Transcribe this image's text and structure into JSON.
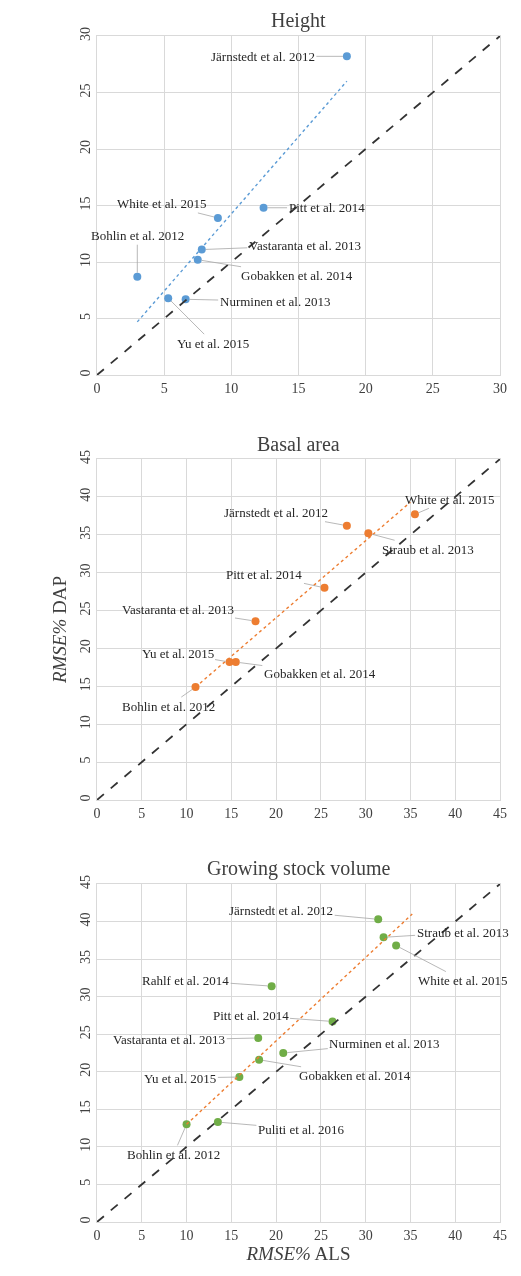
{
  "chart_data": [
    {
      "type": "scatter",
      "title": "Height",
      "xlim": [
        0,
        30
      ],
      "ylim": [
        0,
        30
      ],
      "xticks": [
        0,
        5,
        10,
        15,
        20,
        25,
        30
      ],
      "yticks": [
        0,
        5,
        10,
        15,
        20,
        25,
        30
      ],
      "grid": true,
      "marker": "circle",
      "series": [
        {
          "color": "#5b9bd5",
          "x": [
            18.6,
            12.4,
            9.0,
            7.8,
            7.5,
            3.0,
            6.6,
            5.3
          ],
          "values": [
            28.2,
            14.8,
            13.9,
            11.1,
            10.2,
            8.7,
            6.7,
            6.8
          ]
        },
        {
          "type": "line",
          "color": "#5b9bd5",
          "line_style": "dotted",
          "marker": "none",
          "x": [
            3.0,
            18.6
          ],
          "values": [
            4.7,
            26.0
          ]
        },
        {
          "type": "line",
          "color": "#333333",
          "line_style": "dashed",
          "marker": "none",
          "x": [
            0,
            30
          ],
          "values": [
            0,
            30
          ]
        }
      ],
      "annotations": [
        {
          "text": "Järnstedt et al. 2012",
          "x": 18.6,
          "y": 28.2
        },
        {
          "text": "Pitt et al. 2014",
          "x": 12.4,
          "y": 14.8
        },
        {
          "text": "White et al. 2015",
          "x": 9.0,
          "y": 13.9
        },
        {
          "text": "Vastaranta et al. 2013",
          "x": 7.8,
          "y": 11.1
        },
        {
          "text": "Gobakken et al. 2014",
          "x": 7.5,
          "y": 10.2
        },
        {
          "text": "Bohlin et al. 2012",
          "x": 3.0,
          "y": 8.7
        },
        {
          "text": "Nurminen et al. 2013",
          "x": 6.6,
          "y": 6.7
        },
        {
          "text": "Yu et al. 2015",
          "x": 5.3,
          "y": 6.8
        }
      ]
    },
    {
      "type": "scatter",
      "title": "Basal area",
      "ylabel": "RMSE% DAP",
      "xlim": [
        0,
        45
      ],
      "ylim": [
        0,
        45
      ],
      "xticks": [
        0,
        5,
        10,
        15,
        20,
        25,
        30,
        35,
        40,
        45
      ],
      "yticks": [
        0,
        5,
        10,
        15,
        20,
        25,
        30,
        35,
        40,
        45
      ],
      "grid": true,
      "marker": "circle",
      "series": [
        {
          "color": "#ed7d31",
          "x": [
            27.9,
            30.3,
            35.5,
            25.4,
            17.7,
            14.8,
            15.5,
            11.0
          ],
          "values": [
            36.2,
            35.2,
            37.7,
            28.0,
            23.6,
            18.2,
            18.2,
            14.9
          ]
        },
        {
          "type": "line",
          "color": "#ed7d31",
          "line_style": "dotted",
          "marker": "none",
          "x": [
            11.0,
            35.0
          ],
          "values": [
            14.9,
            39.3
          ]
        },
        {
          "type": "line",
          "color": "#333333",
          "line_style": "dashed",
          "marker": "none",
          "x": [
            0,
            45
          ],
          "values": [
            0,
            45
          ]
        }
      ],
      "annotations": [
        {
          "text": "Järnstedt et al. 2012",
          "x": 27.9,
          "y": 36.2
        },
        {
          "text": "Straub et al. 2013",
          "x": 30.3,
          "y": 35.2
        },
        {
          "text": "White et al. 2015",
          "x": 35.5,
          "y": 37.7
        },
        {
          "text": "Pitt et al. 2014",
          "x": 25.4,
          "y": 28.0
        },
        {
          "text": "Vastaranta et al. 2013",
          "x": 17.7,
          "y": 23.6
        },
        {
          "text": "Yu et al. 2015",
          "x": 14.8,
          "y": 18.2
        },
        {
          "text": "Gobakken et al. 2014",
          "x": 15.5,
          "y": 18.2
        },
        {
          "text": "Bohlin et al. 2012",
          "x": 11.0,
          "y": 14.9
        }
      ]
    },
    {
      "type": "scatter",
      "title": "Growing stock volume",
      "xlabel": "RMSE% ALS",
      "xlim": [
        0,
        45
      ],
      "ylim": [
        0,
        45
      ],
      "xticks": [
        0,
        5,
        10,
        15,
        20,
        25,
        30,
        35,
        40,
        45
      ],
      "yticks": [
        0,
        5,
        10,
        15,
        20,
        25,
        30,
        35,
        40,
        45
      ],
      "grid": true,
      "marker": "circle",
      "series": [
        {
          "color": "#70ad47",
          "x": [
            31.4,
            32.0,
            33.4,
            19.5,
            26.3,
            18.0,
            20.8,
            18.1,
            15.9,
            13.5,
            10.0
          ],
          "values": [
            40.3,
            37.9,
            36.8,
            31.4,
            26.7,
            24.5,
            22.5,
            21.6,
            19.3,
            13.3,
            13.0
          ]
        },
        {
          "type": "line",
          "color": "#ed7d31",
          "line_style": "dotted",
          "marker": "none",
          "x": [
            10.0,
            35.2
          ],
          "values": [
            13.0,
            41.0
          ]
        },
        {
          "type": "line",
          "color": "#333333",
          "line_style": "dashed",
          "marker": "none",
          "x": [
            0,
            45
          ],
          "values": [
            0,
            45
          ]
        }
      ],
      "annotations": [
        {
          "text": "Järnstedt et al. 2012",
          "x": 31.4,
          "y": 40.3
        },
        {
          "text": "Straub et al. 2013",
          "x": 32.0,
          "y": 37.9
        },
        {
          "text": "White et al. 2015",
          "x": 33.4,
          "y": 36.8
        },
        {
          "text": "Rahlf et al. 2014",
          "x": 19.5,
          "y": 31.4
        },
        {
          "text": "Pitt et al. 2014",
          "x": 26.3,
          "y": 26.7
        },
        {
          "text": "Vastaranta et al. 2013",
          "x": 18.0,
          "y": 24.5
        },
        {
          "text": "Nurminen et al. 2013",
          "x": 20.8,
          "y": 22.5
        },
        {
          "text": "Gobakken et al. 2014",
          "x": 18.1,
          "y": 21.6
        },
        {
          "text": "Yu et al. 2015",
          "x": 15.9,
          "y": 19.3
        },
        {
          "text": "Puliti et al. 2016",
          "x": 13.5,
          "y": 13.3
        },
        {
          "text": "Bohlin et al. 2012",
          "x": 10.0,
          "y": 13.0
        }
      ]
    }
  ]
}
